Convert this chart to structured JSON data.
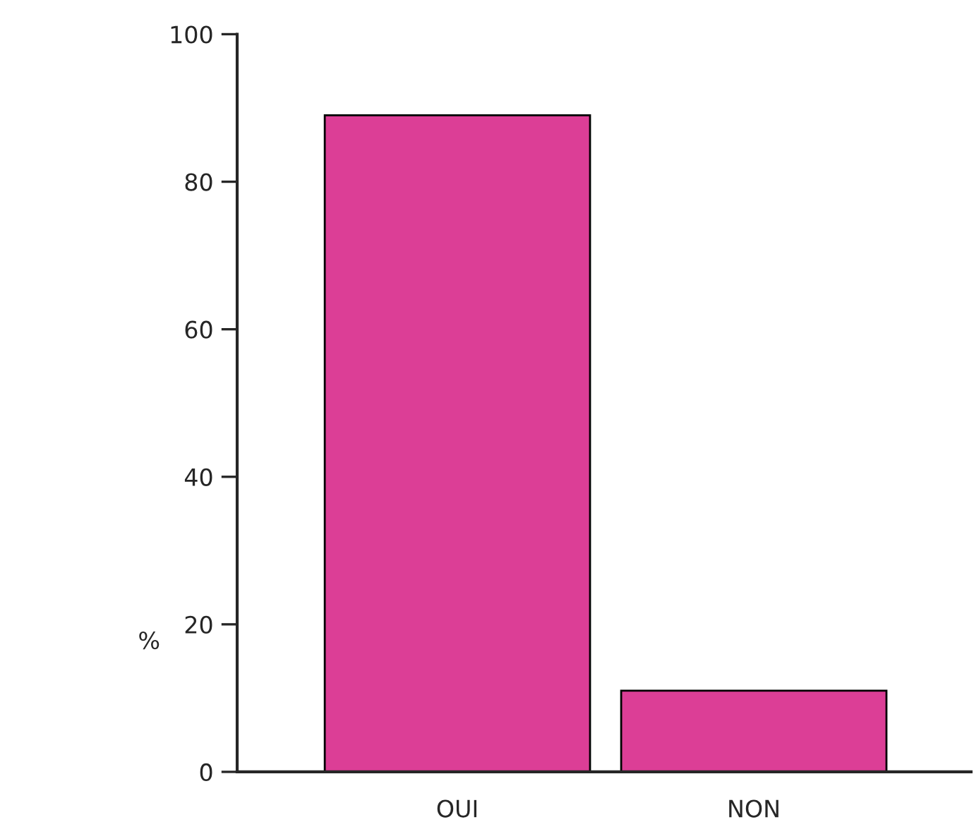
{
  "chart_data": {
    "type": "bar",
    "ylabel": "%",
    "categories": [
      "OUI",
      "NON"
    ],
    "values": [
      89,
      11
    ],
    "color": "#dc3e96",
    "ylim": [
      0,
      100
    ],
    "yticks": [
      0,
      20,
      40,
      60,
      80,
      100
    ],
    "grid": false,
    "legend": false
  }
}
